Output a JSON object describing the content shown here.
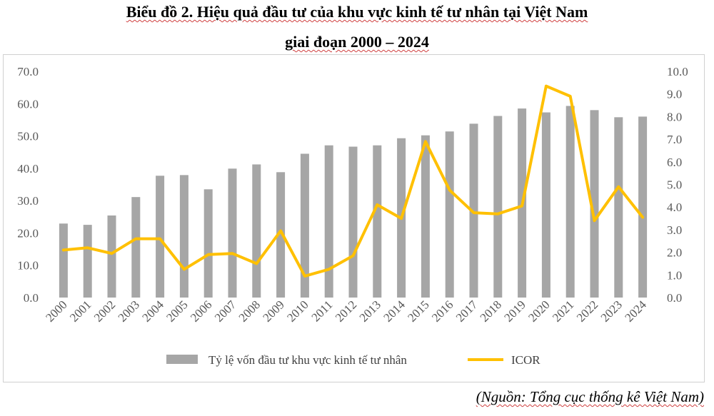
{
  "title_line1": "Biểu đồ 2. Hiệu quả đầu tư của khu vực kinh tế tư nhân tại Việt Nam",
  "title_line2": "giai đoạn 2000 – 2024",
  "source": "(Nguồn: Tổng cục thống kê Việt Nam)",
  "colors": {
    "bars": "#a6a6a6",
    "line": "#ffc000",
    "ticks": "#595959",
    "border": "#d0d0d0"
  },
  "chart_data": {
    "type": "bar+line",
    "categories": [
      "2000",
      "2001",
      "2002",
      "2003",
      "2004",
      "2005",
      "2006",
      "2007",
      "2008",
      "2009",
      "2010",
      "2011",
      "2012",
      "2013",
      "2014",
      "2015",
      "2016",
      "2017",
      "2018",
      "2019",
      "2020",
      "2021",
      "2022",
      "2023",
      "2024"
    ],
    "series": [
      {
        "name": "Tỷ lệ vốn đầu tư khu vực kinh tế tư nhân",
        "type": "bar",
        "axis": "left",
        "values": [
          22.9,
          22.5,
          25.4,
          31.1,
          37.7,
          37.9,
          33.5,
          39.9,
          41.2,
          38.8,
          44.5,
          47.1,
          46.7,
          47.1,
          49.3,
          50.2,
          51.4,
          53.8,
          56.2,
          58.5,
          57.3,
          59.3,
          58.0,
          55.8,
          56.0
        ]
      },
      {
        "name": "ICOR",
        "type": "line",
        "axis": "right",
        "values": [
          2.1,
          2.2,
          1.95,
          2.6,
          2.6,
          1.25,
          1.9,
          1.95,
          1.5,
          2.95,
          0.95,
          1.25,
          1.85,
          4.1,
          3.5,
          6.9,
          4.75,
          3.75,
          3.7,
          4.05,
          9.35,
          8.9,
          3.4,
          4.9,
          3.55
        ]
      }
    ],
    "y_left": {
      "ticks": [
        "0.0",
        "10.0",
        "20.0",
        "30.0",
        "40.0",
        "50.0",
        "60.0",
        "70.0"
      ],
      "ylim": [
        0,
        70
      ]
    },
    "y_right": {
      "ticks": [
        "0.0",
        "1.0",
        "2.0",
        "3.0",
        "4.0",
        "5.0",
        "6.0",
        "7.0",
        "8.0",
        "9.0",
        "10.0"
      ],
      "ylim": [
        0,
        10
      ]
    },
    "grid": false,
    "legend_position": "bottom"
  }
}
